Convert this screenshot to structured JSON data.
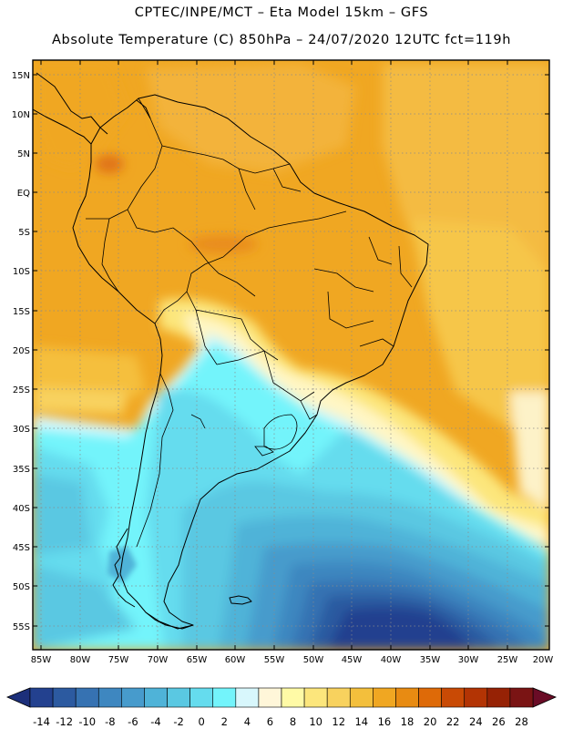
{
  "header": {
    "line1": "CPTEC/INPE/MCT –  Eta Model 15km – GFS",
    "line2": "Absolute Temperature (C) 850hPa – 24/07/2020 12UTC fct=119h"
  },
  "map": {
    "lat_labels": [
      "15N",
      "10N",
      "5N",
      "EQ",
      "5S",
      "10S",
      "15S",
      "20S",
      "25S",
      "30S",
      "35S",
      "40S",
      "45S",
      "50S",
      "55S"
    ],
    "lon_labels": [
      "85W",
      "80W",
      "75W",
      "70W",
      "65W",
      "60W",
      "55W",
      "50W",
      "45W",
      "40W",
      "35W",
      "30W",
      "25W",
      "20W"
    ],
    "lat_range": [
      15,
      -57
    ],
    "lon_range": [
      -85.5,
      -20
    ]
  },
  "colorbar": {
    "labels": [
      "-14",
      "-12",
      "-10",
      "-8",
      "-6",
      "-4",
      "-2",
      "0",
      "2",
      "4",
      "6",
      "8",
      "10",
      "12",
      "14",
      "16",
      "18",
      "20",
      "22",
      "24",
      "26",
      "28"
    ],
    "colors": [
      "#23418f",
      "#2c5aa0",
      "#3672b2",
      "#3e87c0",
      "#479bcc",
      "#4fb3d8",
      "#5ac8e2",
      "#65dcee",
      "#73f4fb",
      "#d8f7fc",
      "#fff6d9",
      "#fffaa6",
      "#fce67c",
      "#f8d25e",
      "#f3bf3c",
      "#f0a722",
      "#e88b12",
      "#de6a08",
      "#c94a05",
      "#b33404",
      "#962205",
      "#7a1414"
    ],
    "under_color": "#1c2f7a",
    "over_color": "#6a0c26"
  }
}
